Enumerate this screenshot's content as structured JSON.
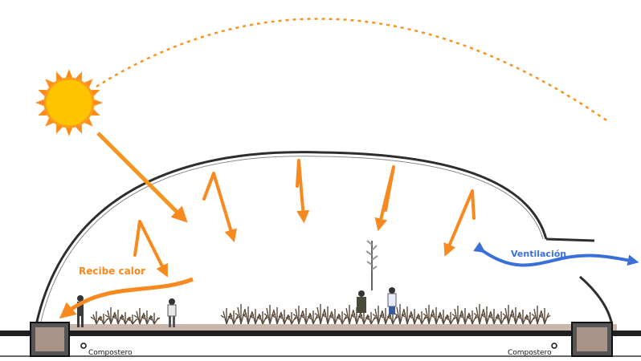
{
  "labels": {
    "heat": "Recibe calor",
    "ventilation": "Ventilación",
    "composter_left": "Compostero",
    "composter_right": "Compostero"
  },
  "colors": {
    "sun_core": "#FFC400",
    "sun_rays": "#FF8C1A",
    "solar_arrow": "#F7931E",
    "heat_arrows": "#F7891F",
    "heat_label": "#F7891F",
    "ventilation": "#3B6FD9",
    "dome": "#333333",
    "ground": "#222222",
    "plants": "#5A4A3A"
  },
  "icons": [
    "sun-icon",
    "person-icon",
    "plant-icon",
    "composter-icon"
  ]
}
